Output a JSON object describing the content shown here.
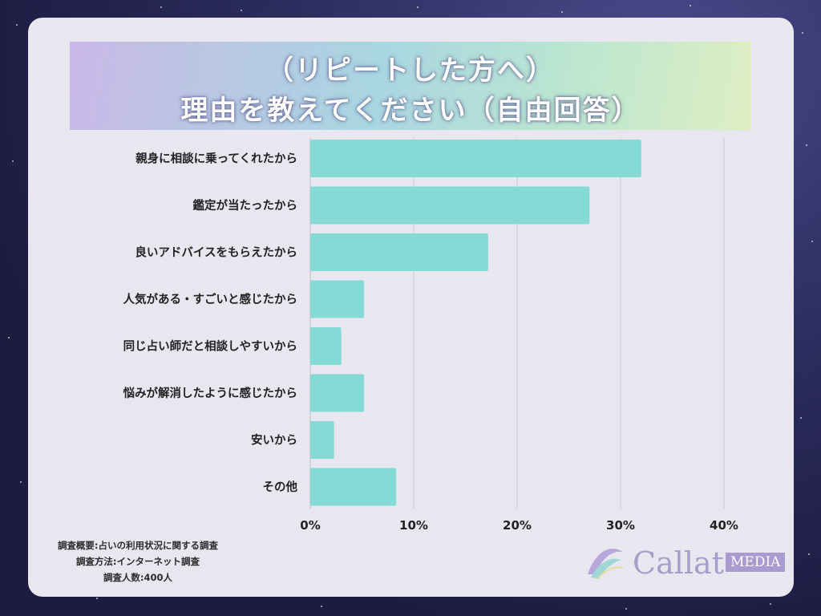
{
  "title": {
    "line1": "（リピートした方へ）",
    "line2": "理由を教えてください（自由回答）"
  },
  "chart_data": {
    "type": "bar",
    "orientation": "horizontal",
    "categories": [
      "親身に相談に乗ってくれたから",
      "鑑定が当たったから",
      "良いアドバイスをもらえたから",
      "人気がある・すごいと感じたから",
      "同じ占い師だと相談しやすいから",
      "悩みが解消したように感じたから",
      "安いから",
      "その他"
    ],
    "values": [
      32,
      27,
      17.2,
      5.2,
      3.0,
      5.2,
      2.3,
      8.3
    ],
    "xlim": [
      0,
      40
    ],
    "xticks": [
      "0%",
      "10%",
      "20%",
      "30%",
      "40%"
    ],
    "bar_color": "#86dad6",
    "grid": true
  },
  "footer": {
    "note1": "調査概要:占いの利用状況に関する調査",
    "note2": "調査方法:インターネット調査",
    "note3": "調査人数:400人"
  },
  "logo": {
    "text": "Callat",
    "badge": "MEDIA"
  }
}
